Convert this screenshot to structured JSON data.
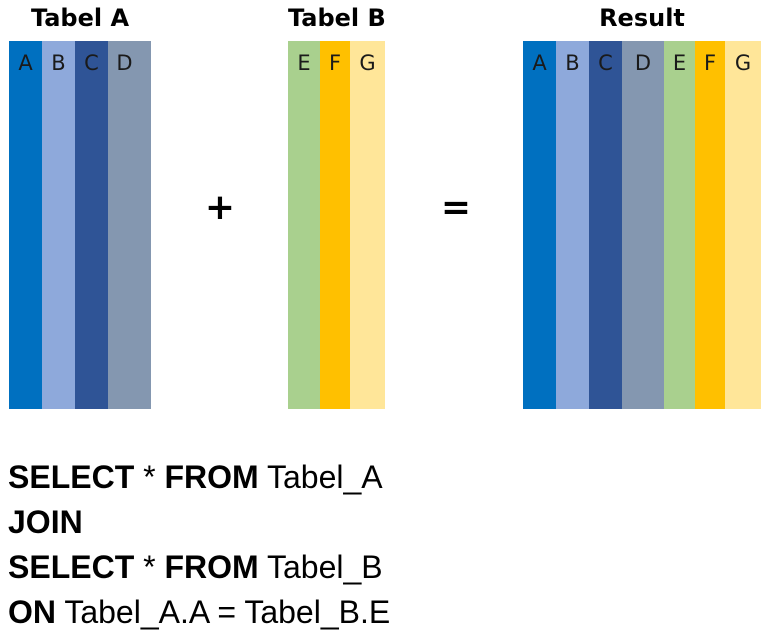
{
  "titles": {
    "table_a": "Tabel A",
    "table_b": "Tabel B",
    "result": "Result"
  },
  "operators": {
    "plus": "+",
    "equals": "="
  },
  "table_a": {
    "columns": [
      {
        "label": "A",
        "color": "#0070C0"
      },
      {
        "label": "B",
        "color": "#8EA9DB"
      },
      {
        "label": "C",
        "color": "#2F5496"
      },
      {
        "label": "D",
        "color": "#8497B0"
      }
    ]
  },
  "table_b": {
    "columns": [
      {
        "label": "E",
        "color": "#A9D08E"
      },
      {
        "label": "F",
        "color": "#FFC000"
      },
      {
        "label": "G",
        "color": "#FFE699"
      }
    ]
  },
  "result": {
    "columns": [
      {
        "label": "A",
        "color": "#0070C0"
      },
      {
        "label": "B",
        "color": "#8EA9DB"
      },
      {
        "label": "C",
        "color": "#2F5496"
      },
      {
        "label": "D",
        "color": "#8497B0"
      },
      {
        "label": "E",
        "color": "#A9D08E"
      },
      {
        "label": "F",
        "color": "#FFC000"
      },
      {
        "label": "G",
        "color": "#FFE699"
      }
    ]
  },
  "sql": {
    "line1_kw1": "SELECT",
    "line1_mid": " * ",
    "line1_kw2": "FROM",
    "line1_rest": " Tabel_A",
    "line2_kw": "JOIN",
    "line3_kw1": "SELECT",
    "line3_mid": " * ",
    "line3_kw2": "FROM",
    "line3_rest": " Tabel_B",
    "line4_kw": "ON",
    "line4_rest": " Tabel_A.A = Tabel_B.E"
  }
}
